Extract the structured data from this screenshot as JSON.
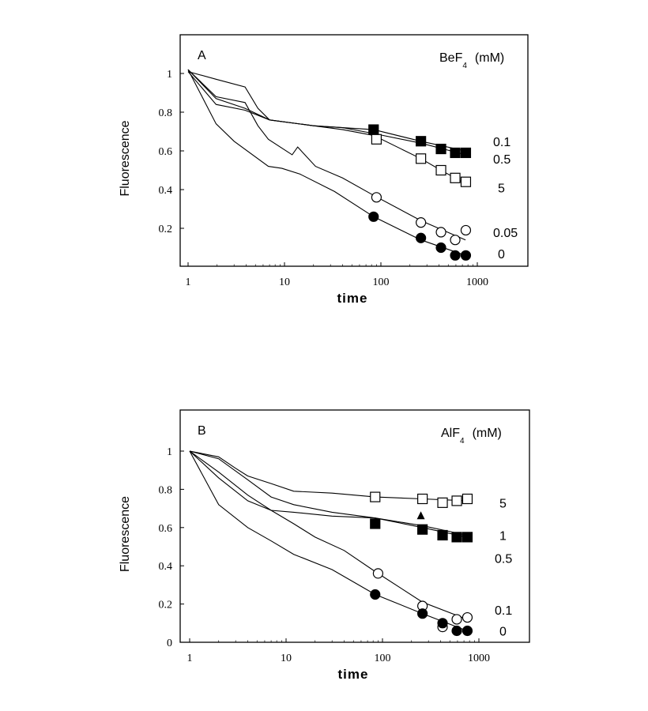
{
  "chart_data": [
    {
      "type": "line",
      "panel_label": "A",
      "legend_title": "BeF",
      "legend_title_sub": "4",
      "legend_unit": "(mM)",
      "xlabel": "time",
      "ylabel": "Fluorescence",
      "xscale": "log",
      "xlim": [
        0.83,
        3300
      ],
      "ylim": [
        0,
        1.2
      ],
      "xticks": [
        "1",
        "10",
        "100",
        "1000"
      ],
      "yticks": [
        "0.2",
        "0.4",
        "0.6",
        "0.8",
        "1"
      ],
      "grid": false,
      "series": [
        {
          "name": "0.1",
          "marker": "filled-square",
          "label_y": 0.65,
          "points": [
            [
              1,
              1.02
            ],
            [
              1.95,
              0.87
            ],
            [
              3.9,
              0.82
            ],
            [
              7,
              0.76
            ],
            [
              20,
              0.73
            ],
            [
              40,
              0.72
            ],
            [
              84,
              0.71
            ],
            [
              260,
              0.65
            ],
            [
              755,
              0.6
            ]
          ],
          "markers": [
            [
              84,
              0.71
            ],
            [
              260,
              0.65
            ],
            [
              420,
              0.61
            ],
            [
              590,
              0.59
            ],
            [
              760,
              0.59
            ]
          ]
        },
        {
          "name": "0.5",
          "marker": "none",
          "label_y": 0.56,
          "points": [
            [
              1,
              1.01
            ],
            [
              1.95,
              0.84
            ],
            [
              3.9,
              0.81
            ],
            [
              7,
              0.76
            ],
            [
              20,
              0.73
            ],
            [
              40,
              0.72
            ],
            [
              84,
              0.69
            ],
            [
              260,
              0.64
            ],
            [
              755,
              0.58
            ]
          ],
          "markers": []
        },
        {
          "name": "5",
          "marker": "open-square",
          "label_y": 0.41,
          "points": [
            [
              1,
              1.01
            ],
            [
              1.95,
              0.97
            ],
            [
              3.9,
              0.93
            ],
            [
              5.3,
              0.82
            ],
            [
              7,
              0.76
            ],
            [
              20,
              0.73
            ],
            [
              40,
              0.71
            ],
            [
              84,
              0.68
            ],
            [
              260,
              0.56
            ],
            [
              420,
              0.5
            ],
            [
              590,
              0.46
            ],
            [
              755,
              0.43
            ]
          ],
          "markers": [
            [
              90,
              0.66
            ],
            [
              260,
              0.56
            ],
            [
              420,
              0.5
            ],
            [
              590,
              0.46
            ],
            [
              760,
              0.44
            ]
          ]
        },
        {
          "name": "0.05",
          "marker": "open-circle",
          "label_y": 0.18,
          "points": [
            [
              1,
              1.02
            ],
            [
              1.95,
              0.88
            ],
            [
              3.9,
              0.85
            ],
            [
              5.3,
              0.73
            ],
            [
              6.8,
              0.66
            ],
            [
              12,
              0.58
            ],
            [
              13.7,
              0.62
            ],
            [
              21,
              0.52
            ],
            [
              40,
              0.46
            ],
            [
              84,
              0.37
            ],
            [
              260,
              0.24
            ],
            [
              755,
              0.14
            ]
          ],
          "markers": [
            [
              90,
              0.36
            ],
            [
              260,
              0.23
            ],
            [
              420,
              0.18
            ],
            [
              590,
              0.14
            ],
            [
              760,
              0.19
            ]
          ]
        },
        {
          "name": "0",
          "marker": "filled-circle",
          "label_y": 0.07,
          "points": [
            [
              1,
              1.02
            ],
            [
              1.95,
              0.74
            ],
            [
              3,
              0.65
            ],
            [
              6.8,
              0.52
            ],
            [
              9.4,
              0.51
            ],
            [
              14.5,
              0.48
            ],
            [
              33,
              0.39
            ],
            [
              84,
              0.26
            ],
            [
              260,
              0.14
            ],
            [
              755,
              0.06
            ]
          ],
          "markers": [
            [
              84,
              0.26
            ],
            [
              260,
              0.15
            ],
            [
              420,
              0.1
            ],
            [
              590,
              0.06
            ],
            [
              760,
              0.06
            ]
          ]
        }
      ]
    },
    {
      "type": "line",
      "panel_label": "B",
      "legend_title": "AlF",
      "legend_title_sub": "4",
      "legend_unit": "(mM)",
      "xlabel": "time",
      "ylabel": "Fluorescence",
      "xscale": "log",
      "xlim": [
        0.83,
        3300
      ],
      "ylim": [
        0,
        1.2
      ],
      "xticks": [
        "1",
        "10",
        "100",
        "1000"
      ],
      "yticks": [
        "0",
        "0.2",
        "0.4",
        "0.6",
        "0.8",
        "1"
      ],
      "grid": false,
      "series": [
        {
          "name": "5",
          "marker": "open-square",
          "label_y": 0.73,
          "points": [
            [
              1,
              1
            ],
            [
              2,
              0.97
            ],
            [
              3,
              0.91
            ],
            [
              4,
              0.87
            ],
            [
              7,
              0.83
            ],
            [
              12,
              0.79
            ],
            [
              30,
              0.78
            ],
            [
              84,
              0.76
            ],
            [
              260,
              0.75
            ],
            [
              755,
              0.74
            ]
          ],
          "markers": [
            [
              84,
              0.76
            ],
            [
              260,
              0.75
            ],
            [
              420,
              0.73
            ],
            [
              590,
              0.74
            ],
            [
              760,
              0.75
            ]
          ]
        },
        {
          "name": "1",
          "marker": "filled-square",
          "label_y": 0.56,
          "points": [
            [
              1,
              1
            ],
            [
              2,
              0.96
            ],
            [
              4,
              0.85
            ],
            [
              7,
              0.76
            ],
            [
              12,
              0.72
            ],
            [
              30,
              0.68
            ],
            [
              84,
              0.65
            ],
            [
              260,
              0.6
            ],
            [
              755,
              0.55
            ]
          ],
          "markers": [
            [
              84,
              0.62
            ],
            [
              260,
              0.59
            ],
            [
              420,
              0.56
            ],
            [
              590,
              0.55
            ],
            [
              760,
              0.55
            ]
          ]
        },
        {
          "name": "0.5",
          "marker": "filled-triangle",
          "label_y": 0.44,
          "points": [
            [
              1,
              1
            ],
            [
              2,
              0.86
            ],
            [
              4,
              0.74
            ],
            [
              7,
              0.69
            ],
            [
              12,
              0.68
            ],
            [
              30,
              0.66
            ],
            [
              84,
              0.65
            ],
            [
              260,
              0.61
            ],
            [
              755,
              0.56
            ]
          ],
          "markers": [
            [
              250,
              0.66
            ]
          ]
        },
        {
          "name": "0.1",
          "marker": "open-circle",
          "label_y": 0.17,
          "points": [
            [
              1,
              1
            ],
            [
              2,
              0.89
            ],
            [
              4,
              0.77
            ],
            [
              7,
              0.69
            ],
            [
              12,
              0.62
            ],
            [
              20,
              0.55
            ],
            [
              40,
              0.48
            ],
            [
              84,
              0.37
            ],
            [
              260,
              0.21
            ],
            [
              755,
              0.12
            ]
          ],
          "markers": [
            [
              90,
              0.36
            ],
            [
              260,
              0.19
            ],
            [
              420,
              0.08
            ],
            [
              590,
              0.12
            ],
            [
              760,
              0.13
            ]
          ]
        },
        {
          "name": "0",
          "marker": "filled-circle",
          "label_y": 0.06,
          "points": [
            [
              1,
              1
            ],
            [
              2,
              0.72
            ],
            [
              4,
              0.6
            ],
            [
              7,
              0.53
            ],
            [
              12,
              0.46
            ],
            [
              30,
              0.38
            ],
            [
              84,
              0.25
            ],
            [
              260,
              0.15
            ],
            [
              755,
              0.06
            ]
          ],
          "markers": [
            [
              84,
              0.25
            ],
            [
              260,
              0.15
            ],
            [
              420,
              0.1
            ],
            [
              590,
              0.06
            ],
            [
              760,
              0.06
            ]
          ]
        }
      ]
    }
  ]
}
